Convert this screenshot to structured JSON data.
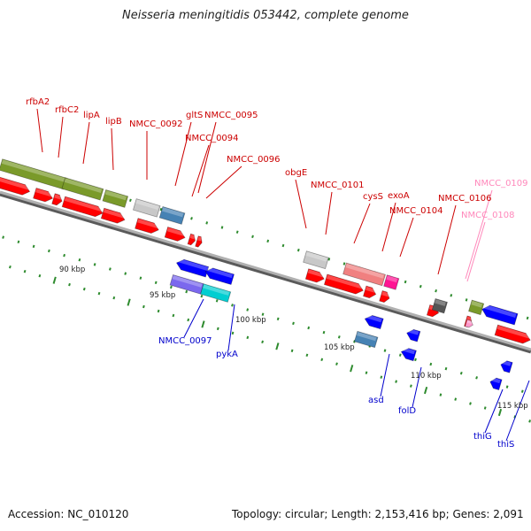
{
  "title": "Neisseria meningitidis 053442, complete genome",
  "footer": {
    "accession": "Accession: NC_010120",
    "summary": "Topology: circular; Length: 2,153,416 bp; Genes: 2,091"
  },
  "colors": {
    "background": "#ffffff",
    "backbone": "#8a8a8a",
    "cds_forward": "#ff0000",
    "cds_reverse": "#0000ff",
    "tick": "#2e8b2e",
    "label_forward": "#cc0000",
    "label_reverse": "#0000cc",
    "label_pink": "#ff88bb"
  },
  "scale_labels": [
    "90 kbp",
    "95 kbp",
    "100 kbp",
    "105 kbp",
    "110 kbp",
    "115 kbp"
  ],
  "gene_labels_forward": [
    "rfbA2",
    "rfbC2",
    "lipA",
    "lipB",
    "NMCC_0092",
    "gltS",
    "NMCC_0095",
    "NMCC_0094",
    "NMCC_0096",
    "obgE",
    "NMCC_0101",
    "cysS",
    "exoA",
    "NMCC_0104",
    "NMCC_0106",
    "NMCC_0109",
    "NMCC_0108"
  ],
  "gene_labels_reverse": [
    "NMCC_0097",
    "pykA",
    "asd",
    "folD",
    "thiG",
    "thiS"
  ]
}
